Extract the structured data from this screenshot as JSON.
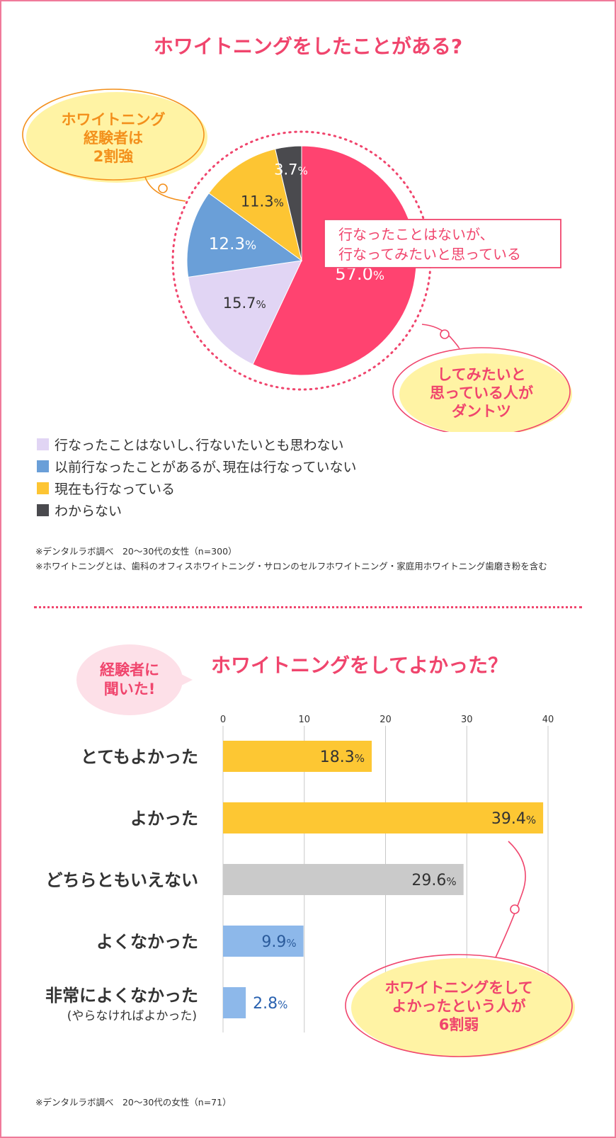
{
  "pie": {
    "title": "ホワイトニングをしたことがある?",
    "chart_data": {
      "type": "pie",
      "slices": [
        {
          "name": "行なったことはないが、行なってみたいと思っている",
          "value": 57.0,
          "label": "57.0",
          "color": "#ff4370"
        },
        {
          "name": "行なったことはないし、行ないたいとも思わない",
          "value": 15.7,
          "label": "15.7",
          "color": "#e1d5f4"
        },
        {
          "name": "以前行なったことがあるが、現在は行なっていない",
          "value": 12.3,
          "label": "12.3",
          "color": "#6a9fd8"
        },
        {
          "name": "現在も行なっている",
          "value": 11.3,
          "label": "11.3",
          "color": "#fdc533"
        },
        {
          "name": "わからない",
          "value": 3.7,
          "label": "3.7",
          "color": "#4a4a4e"
        }
      ],
      "unit": "%"
    },
    "callout_main_line1": "行なったことはないが、",
    "callout_main_line2": "行なってみたいと思っている",
    "bubble_left": [
      "ホワイトニング",
      "経験者は",
      "2割強"
    ],
    "bubble_right": [
      "してみたいと",
      "思っている人が",
      "ダントツ"
    ],
    "legend": [
      {
        "label": "行なったことはないし､行ないたいとも思わない",
        "color": "#e1d5f4"
      },
      {
        "label": "以前行なったことがあるが､現在は行なっていない",
        "color": "#6a9fd8"
      },
      {
        "label": "現在も行なっている",
        "color": "#fdc533"
      },
      {
        "label": "わからない",
        "color": "#4a4a4e"
      }
    ],
    "note1": "※デンタルラボ調べ　20～30代の女性（n=300）",
    "note2": "※ホワイトニングとは、歯科のオフィスホワイトニング・サロンのセルフホワイトニング・家庭用ホワイトニング歯磨き粉を含む"
  },
  "bar": {
    "title": "ホワイトニングをしてよかった？",
    "tag": [
      "経験者に",
      "聞いた!"
    ],
    "chart_data": {
      "type": "bar",
      "orientation": "horizontal",
      "categories": [
        "とてもよかった",
        "よかった",
        "どちらともいえない",
        "よくなかった",
        "非常によくなかった"
      ],
      "category_sub": [
        "",
        "",
        "",
        "",
        "(やらなければよかった)"
      ],
      "values": [
        18.3,
        39.4,
        29.6,
        9.9,
        2.8
      ],
      "value_labels": [
        "18.3",
        "39.4",
        "29.6",
        "9.9",
        "2.8"
      ],
      "colors": [
        "#fdc733",
        "#fdc733",
        "#cacaca",
        "#8db8ea",
        "#8db8ea"
      ],
      "xticks": [
        "0",
        "10",
        "20",
        "30",
        "40"
      ],
      "xlim": [
        0,
        40
      ],
      "grid": true,
      "unit": "%"
    },
    "bubble": [
      "ホワイトニングをして",
      "よかったという人が",
      "6割弱"
    ],
    "note": "※デンタルラボ調べ　20～30代の女性（n=71）"
  }
}
